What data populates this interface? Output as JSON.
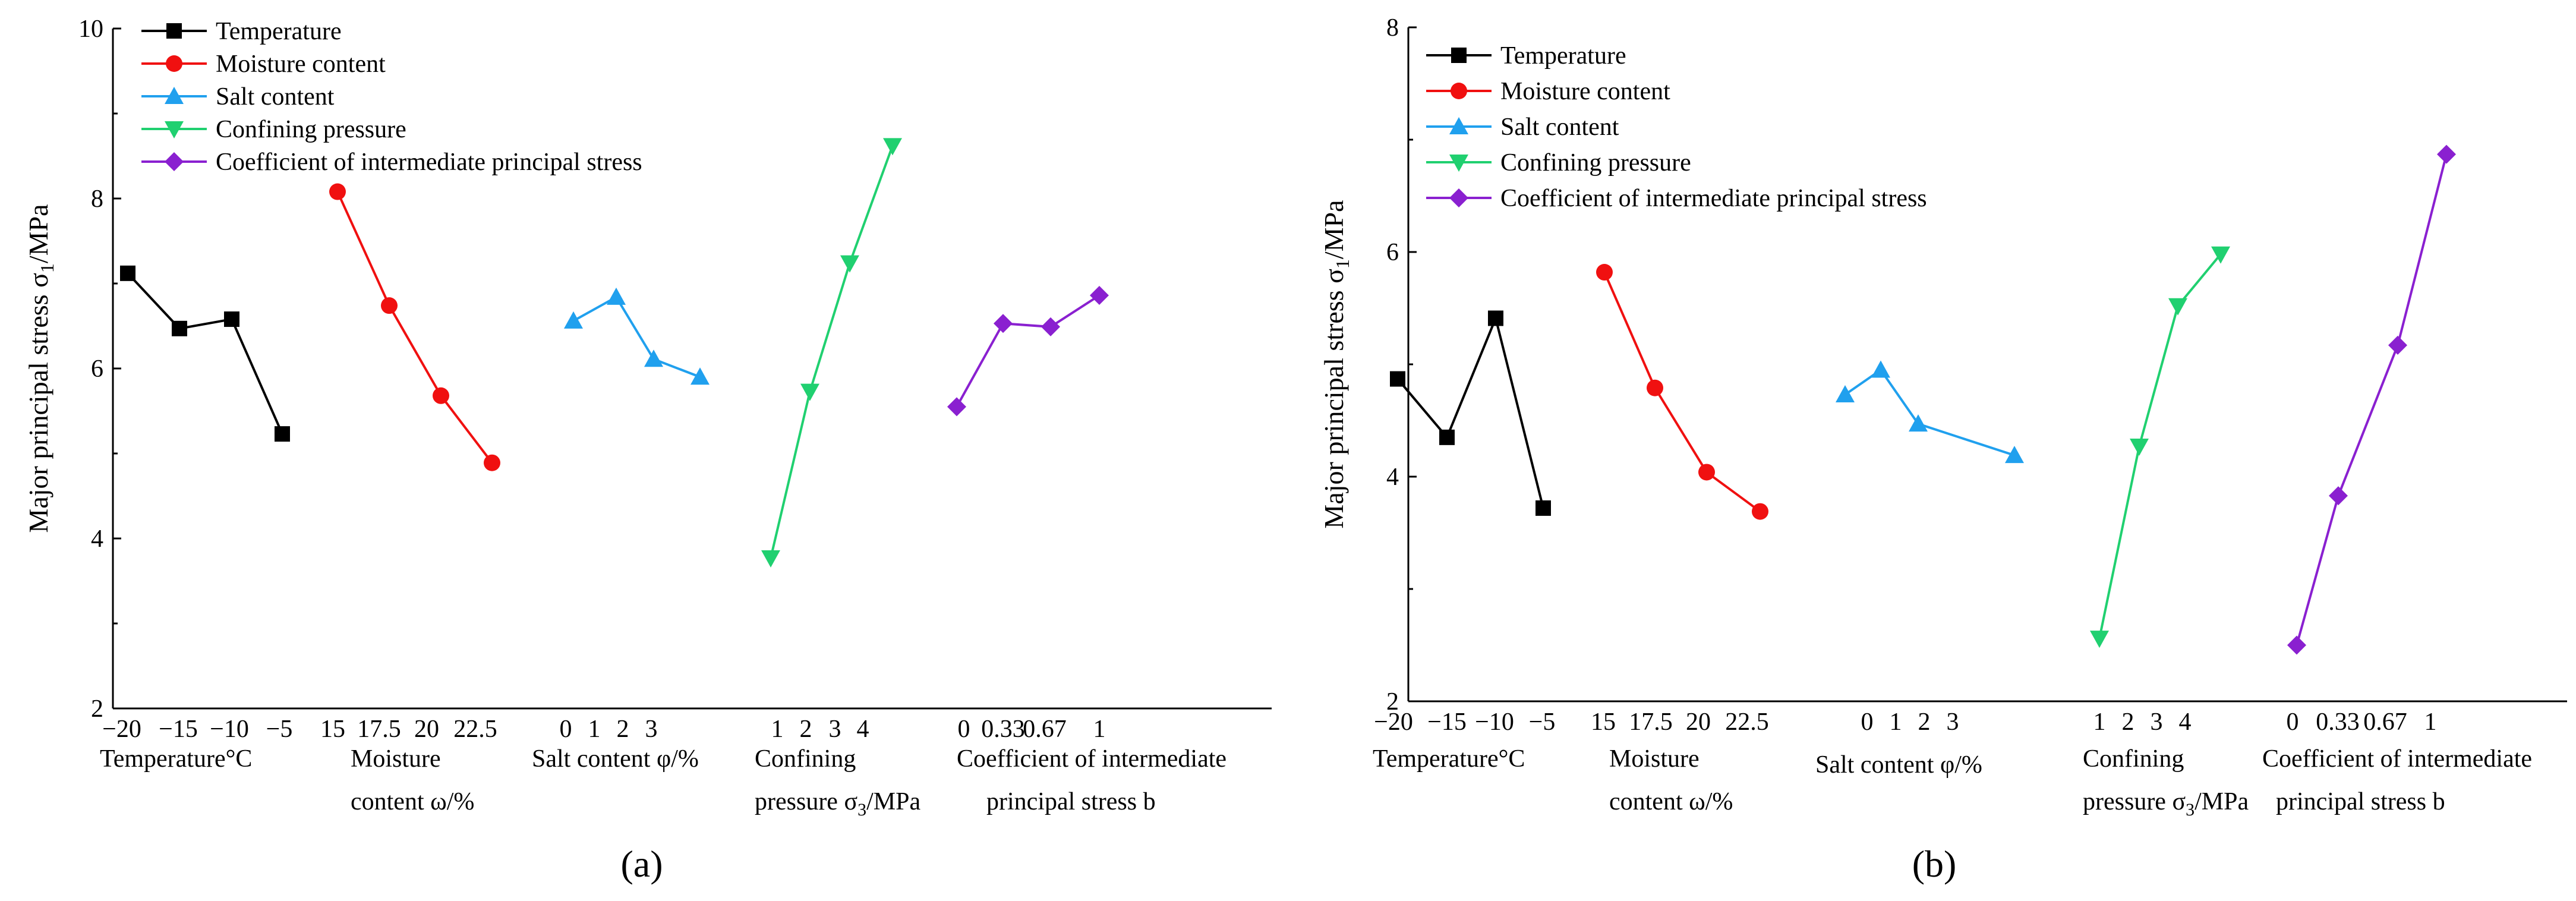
{
  "panel_labels": [
    "(a)",
    "(b)"
  ],
  "colors": {
    "temperature": "#000000",
    "moisture": "#f01010",
    "salt": "#20a0ee",
    "confining": "#20d070",
    "coefficient": "#8a20d0"
  },
  "chart_data": [
    {
      "type": "line",
      "panel": "(a)",
      "ylabel_main": "Major principal stress σ",
      "ylabel_sub": "1",
      "ylabel_unit": "/MPa",
      "ylim": [
        2,
        10
      ],
      "yticks": [
        "2",
        "4",
        "6",
        "8",
        "10"
      ],
      "legend": [
        "Temperature",
        "Moisture content",
        "Salt content",
        "Confining pressure",
        "Coefficient of intermediate principal stress"
      ],
      "groups": [
        {
          "series": "Temperature",
          "tick_labels": [
            "−20",
            "−15",
            "−10",
            "−5"
          ],
          "axis_label": [
            "Temperature°C"
          ],
          "values": [
            7.12,
            6.47,
            6.58,
            5.23
          ]
        },
        {
          "series": "Moisture content",
          "tick_labels": [
            "15",
            "17.5",
            "20",
            "22.5"
          ],
          "axis_label": [
            "Moisture",
            "content ω/%"
          ],
          "values": [
            8.08,
            6.74,
            5.68,
            4.89
          ]
        },
        {
          "series": "Salt content",
          "tick_labels": [
            "0",
            "1",
            "2",
            "3"
          ],
          "axis_label": [
            "Salt content φ/%"
          ],
          "values": [
            6.56,
            6.84,
            6.11,
            5.9
          ]
        },
        {
          "series": "Confining pressure",
          "tick_labels": [
            "1",
            "2",
            "3",
            "4"
          ],
          "axis_label": [
            "Confining",
            "pressure σ3/MPa"
          ],
          "values": [
            3.77,
            5.73,
            7.24,
            8.62
          ]
        },
        {
          "series": "Coefficient of intermediate principal stress",
          "tick_labels": [
            "0",
            "0.33",
            "0.67",
            "1"
          ],
          "axis_label": [
            "Coefficient of intermediate",
            "principal stress b"
          ],
          "values": [
            5.55,
            6.53,
            6.49,
            6.86
          ]
        }
      ]
    },
    {
      "type": "line",
      "panel": "(b)",
      "ylabel_main": "Major principal stress σ",
      "ylabel_sub": "1",
      "ylabel_unit": "/MPa",
      "ylim": [
        2,
        8
      ],
      "yticks": [
        "2",
        "4",
        "6",
        "8"
      ],
      "legend": [
        "Temperature",
        "Moisture content",
        "Salt content",
        "Confining pressure",
        "Coefficient of intermediate principal stress"
      ],
      "groups": [
        {
          "series": "Temperature",
          "tick_labels": [
            "−20",
            "−15",
            "−10",
            "−5"
          ],
          "axis_label": [
            "Temperature°C"
          ],
          "values": [
            4.87,
            4.35,
            5.41,
            3.72
          ]
        },
        {
          "series": "Moisture content",
          "tick_labels": [
            "15",
            "17.5",
            "20",
            "22.5"
          ],
          "axis_label": [
            "Moisture",
            "content ω/%"
          ],
          "values": [
            5.82,
            4.79,
            4.04,
            3.69
          ]
        },
        {
          "series": "Salt content",
          "tick_labels": [
            "0",
            "1",
            "2",
            "3"
          ],
          "axis_label": [
            "Salt content φ/%"
          ],
          "values": [
            4.73,
            4.95,
            4.47,
            4.19
          ]
        },
        {
          "series": "Confining pressure",
          "tick_labels": [
            "1",
            "2",
            "3",
            "4"
          ],
          "axis_label": [
            "Confining",
            "pressure σ3/MPa"
          ],
          "values": [
            2.56,
            4.27,
            5.52,
            5.98
          ]
        },
        {
          "series": "Coefficient of intermediate principal stress",
          "tick_labels": [
            "0",
            "0.33",
            "0.67",
            "1"
          ],
          "axis_label": [
            "Coefficient of intermediate",
            "principal stress b"
          ],
          "values": [
            2.5,
            3.83,
            5.17,
            6.87
          ]
        }
      ]
    }
  ]
}
